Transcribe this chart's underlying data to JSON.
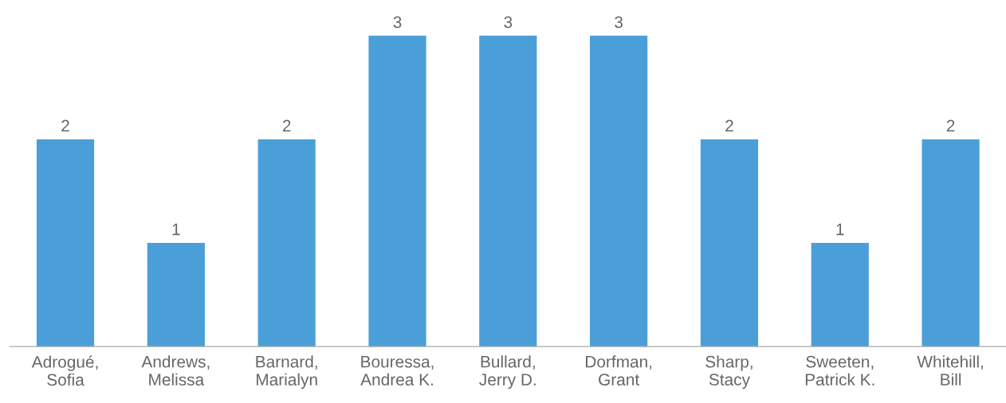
{
  "chart_data": {
    "type": "bar",
    "categories": [
      "Adrogué,\nSofia",
      "Andrews,\nMelissa",
      "Barnard,\nMarialyn",
      "Bouressa,\nAndrea K.",
      "Bullard,\nJerry D.",
      "Dorfman,\nGrant",
      "Sharp,\nStacy",
      "Sweeten,\nPatrick K.",
      "Whitehill,\nBill"
    ],
    "values": [
      2,
      1,
      2,
      3,
      3,
      3,
      2,
      1,
      2
    ],
    "color": "#4a9fd8",
    "data_labels": true,
    "grid": false,
    "legend": false
  }
}
